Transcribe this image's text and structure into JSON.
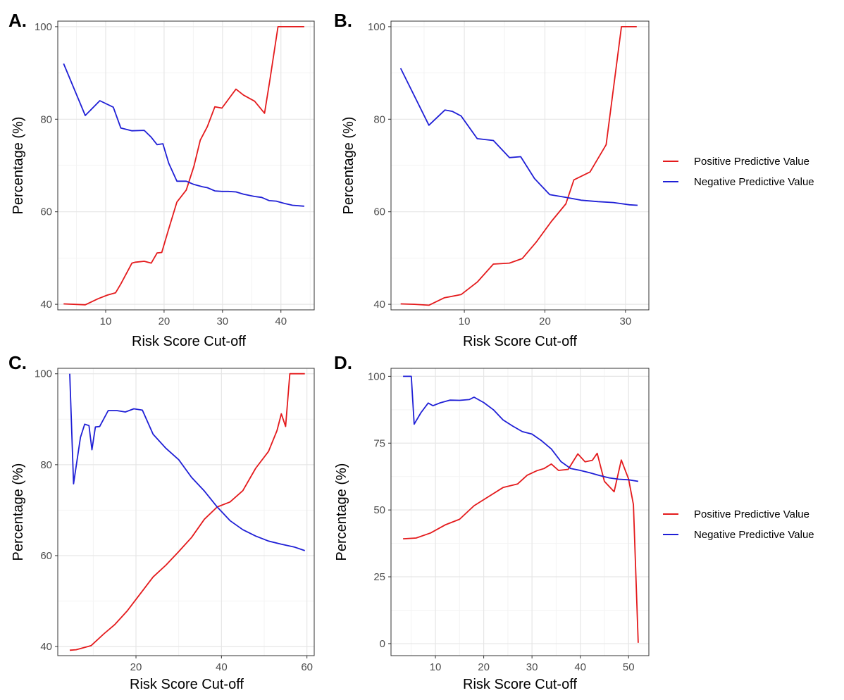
{
  "colors": {
    "ppv": "#e41a1c",
    "npv": "#1f1fd6",
    "grid_major": "#e6e6e6",
    "grid_minor": "#f3f3f3",
    "frame": "#333333"
  },
  "legend": {
    "placement": "right",
    "entries": [
      "Positive Predictive Value",
      "Negative Predictive Value"
    ]
  },
  "chart_data": [
    {
      "panel": "A.",
      "type": "line",
      "xlabel": "Risk Score Cut-off",
      "ylabel": "Percentage (%)",
      "xlim": [
        1.8,
        45.7
      ],
      "ylim": [
        38.8,
        101.2
      ],
      "xticks": [
        10,
        20,
        30,
        40
      ],
      "yticks": [
        40,
        60,
        80,
        100
      ],
      "grid": true,
      "series": [
        {
          "name": "Positive Predictive Value",
          "x": [
            2.8,
            6.5,
            8.7,
            10.3,
            11.7,
            12.6,
            14.5,
            15.1,
            16.6,
            17.8,
            18.8,
            19.6,
            20.8,
            22.2,
            23.8,
            25.1,
            26.2,
            27.4,
            28.7,
            29.9,
            32.3,
            33.6,
            35.5,
            37.2,
            38.1,
            39.5,
            40.2,
            44.0
          ],
          "y": [
            40.1,
            39.9,
            41.2,
            42.0,
            42.5,
            44.4,
            48.9,
            49.1,
            49.3,
            48.9,
            51.1,
            51.2,
            56.3,
            62.1,
            64.7,
            69.8,
            75.5,
            78.4,
            82.7,
            82.4,
            86.5,
            85.2,
            83.9,
            81.3,
            88.4,
            100.0,
            100.0,
            100.0
          ]
        },
        {
          "name": "Negative Predictive Value",
          "x": [
            2.8,
            6.5,
            9.0,
            11.3,
            12.6,
            14.5,
            16.6,
            17.8,
            18.8,
            19.8,
            20.8,
            22.2,
            23.8,
            25.1,
            26.6,
            27.4,
            28.7,
            29.9,
            31.0,
            32.3,
            33.6,
            35.5,
            36.7,
            38.0,
            39.2,
            40.6,
            42.0,
            44.0
          ],
          "y": [
            92.0,
            80.8,
            84.0,
            82.6,
            78.1,
            77.5,
            77.6,
            76.1,
            74.5,
            74.7,
            70.5,
            66.6,
            66.6,
            65.9,
            65.4,
            65.2,
            64.5,
            64.4,
            64.4,
            64.3,
            63.8,
            63.3,
            63.1,
            62.4,
            62.3,
            61.8,
            61.4,
            61.2
          ]
        }
      ]
    },
    {
      "panel": "B.",
      "type": "line",
      "xlabel": "Risk Score Cut-off",
      "ylabel": "Percentage (%)",
      "xlim": [
        0.9,
        32.9
      ],
      "ylim": [
        38.8,
        101.2
      ],
      "xticks": [
        10,
        20,
        30
      ],
      "yticks": [
        40,
        60,
        80,
        100
      ],
      "grid": true,
      "series": [
        {
          "name": "Positive Predictive Value",
          "x": [
            2.1,
            3.8,
            5.6,
            7.5,
            9.6,
            11.6,
            13.6,
            15.6,
            17.2,
            18.9,
            20.8,
            22.6,
            23.6,
            25.6,
            27.6,
            29.5,
            31.4
          ],
          "y": [
            40.1,
            40.0,
            39.8,
            41.4,
            42.1,
            44.8,
            48.7,
            48.9,
            49.9,
            53.4,
            57.9,
            61.7,
            66.9,
            68.6,
            74.5,
            100.0,
            100.0
          ]
        },
        {
          "name": "Negative Predictive Value",
          "x": [
            2.1,
            5.6,
            7.6,
            8.5,
            9.6,
            11.6,
            13.6,
            15.6,
            17.0,
            18.7,
            20.6,
            22.6,
            24.5,
            26.6,
            28.5,
            30.5,
            31.5
          ],
          "y": [
            91.0,
            78.7,
            82.0,
            81.7,
            80.7,
            75.8,
            75.4,
            71.7,
            71.9,
            67.2,
            63.7,
            63.1,
            62.5,
            62.2,
            62.0,
            61.5,
            61.4
          ]
        }
      ]
    },
    {
      "panel": "C.",
      "type": "line",
      "xlabel": "Risk Score Cut-off",
      "ylabel": "Percentage (%)",
      "xlim": [
        1.7,
        61.7
      ],
      "ylim": [
        38.0,
        101.2
      ],
      "xticks": [
        20,
        40,
        60
      ],
      "yticks": [
        40,
        60,
        80,
        100
      ],
      "grid": true,
      "series": [
        {
          "name": "Positive Predictive Value",
          "x": [
            4.5,
            6.0,
            9.5,
            12.5,
            15.0,
            18.0,
            21.0,
            24.0,
            27.0,
            30.0,
            33.0,
            36.0,
            39.0,
            42.0,
            45.0,
            48.0,
            51.0,
            53.0,
            54.0,
            55.0,
            56.0,
            59.5
          ],
          "y": [
            39.2,
            39.3,
            40.2,
            42.8,
            44.8,
            47.9,
            51.6,
            55.3,
            57.9,
            60.9,
            64.0,
            68.0,
            70.7,
            71.8,
            74.3,
            79.2,
            82.9,
            87.5,
            91.2,
            88.4,
            100.0,
            100.0
          ]
        },
        {
          "name": "Negative Predictive Value",
          "x": [
            4.5,
            5.4,
            7.0,
            8.0,
            9.0,
            9.7,
            10.5,
            11.5,
            13.5,
            15.5,
            17.5,
            19.5,
            21.5,
            24.0,
            27.0,
            30.0,
            33.0,
            36.0,
            39.0,
            42.0,
            45.0,
            48.0,
            51.0,
            54.0,
            57.0,
            59.5
          ],
          "y": [
            100.0,
            75.8,
            86.0,
            88.9,
            88.6,
            83.3,
            88.3,
            88.4,
            91.9,
            91.9,
            91.6,
            92.3,
            92.0,
            86.7,
            83.6,
            81.1,
            77.2,
            74.2,
            70.7,
            67.7,
            65.7,
            64.3,
            63.2,
            62.5,
            61.9,
            61.1
          ]
        }
      ]
    },
    {
      "panel": "D.",
      "type": "line",
      "xlabel": "Risk Score Cut-off",
      "ylabel": "Percentage (%)",
      "xlim": [
        0.8,
        54.2
      ],
      "ylim": [
        -4.5,
        103.0
      ],
      "xticks": [
        10,
        20,
        30,
        40,
        50
      ],
      "yticks": [
        0,
        25,
        50,
        75,
        100
      ],
      "grid": true,
      "series": [
        {
          "name": "Positive Predictive Value",
          "x": [
            3.3,
            6.0,
            9.0,
            12.0,
            15.0,
            18.0,
            21.0,
            24.0,
            27.0,
            29.0,
            31.0,
            32.5,
            34.0,
            35.5,
            37.5,
            39.5,
            41.0,
            42.5,
            43.5,
            45.0,
            47.0,
            48.5,
            50.0,
            51.0,
            52.0
          ],
          "y": [
            39.2,
            39.5,
            41.4,
            44.4,
            46.5,
            51.6,
            55.0,
            58.4,
            59.7,
            63.0,
            64.7,
            65.5,
            67.2,
            64.8,
            65.2,
            71.0,
            68.0,
            68.6,
            71.2,
            60.7,
            56.8,
            68.7,
            61.6,
            52.0,
            0.3
          ]
        },
        {
          "name": "Negative Predictive Value",
          "x": [
            3.3,
            5.0,
            5.6,
            7.0,
            8.5,
            9.5,
            11.0,
            13.0,
            15.0,
            17.0,
            18.0,
            20.0,
            22.0,
            24.0,
            26.0,
            28.0,
            30.0,
            32.0,
            34.0,
            36.0,
            38.0,
            40.0,
            42.0,
            44.0,
            46.0,
            48.0,
            50.0,
            52.0
          ],
          "y": [
            100.0,
            100.0,
            82.1,
            86.4,
            90.0,
            89.0,
            90.1,
            91.1,
            91.0,
            91.3,
            92.2,
            90.2,
            87.5,
            83.7,
            81.4,
            79.3,
            78.4,
            75.9,
            72.8,
            68.1,
            65.5,
            64.8,
            63.9,
            62.9,
            62.0,
            61.5,
            61.3,
            60.7
          ]
        }
      ]
    }
  ]
}
